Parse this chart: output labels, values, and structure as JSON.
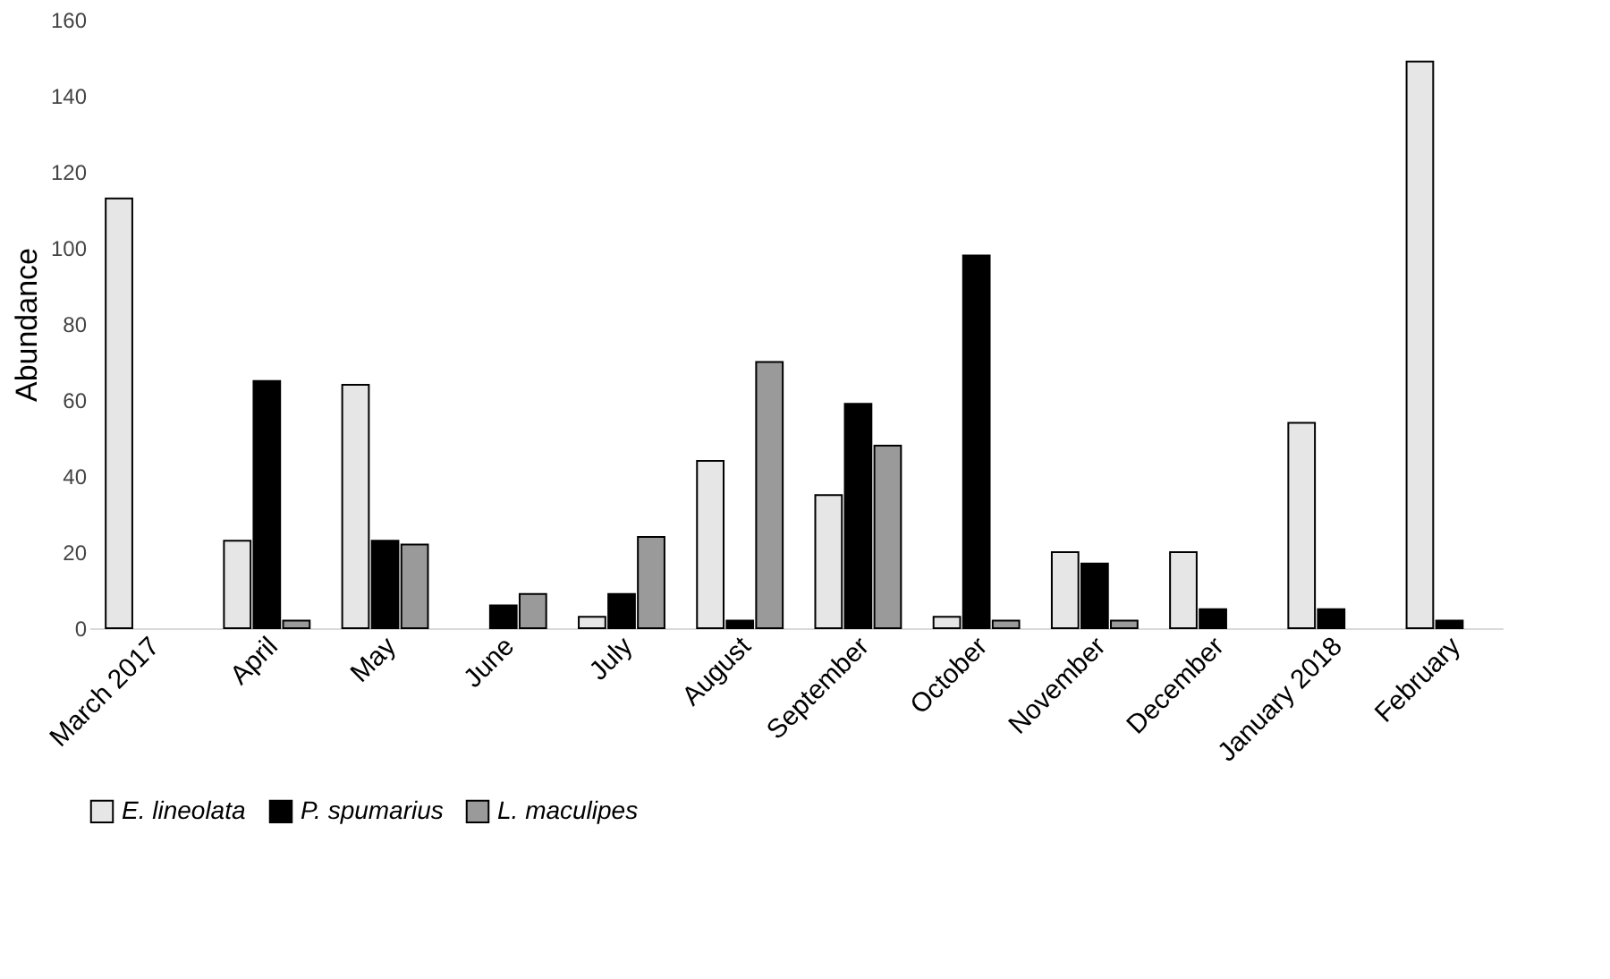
{
  "chart_data": {
    "type": "bar",
    "ylabel": "Abundance",
    "categories": [
      "March 2017",
      "April",
      "May",
      "June",
      "July",
      "August",
      "September",
      "October",
      "November",
      "December",
      "January 2018",
      "February"
    ],
    "series": [
      {
        "name": "E. lineolata",
        "color": "#e6e6e6",
        "values": [
          113,
          23,
          64,
          0,
          3,
          44,
          35,
          3,
          20,
          20,
          54,
          149
        ]
      },
      {
        "name": "P. spumarius",
        "color": "#000000",
        "values": [
          0,
          65,
          23,
          6,
          9,
          2,
          59,
          98,
          17,
          5,
          5,
          2
        ]
      },
      {
        "name": "L. maculipes",
        "color": "#9a9a9a",
        "values": [
          0,
          2,
          22,
          9,
          24,
          70,
          48,
          2,
          2,
          0,
          0,
          0
        ]
      }
    ],
    "ylim": [
      0,
      160
    ],
    "yticks": [
      0,
      20,
      40,
      60,
      80,
      100,
      120,
      140,
      160
    ],
    "grid": false,
    "legend": "bottom"
  }
}
